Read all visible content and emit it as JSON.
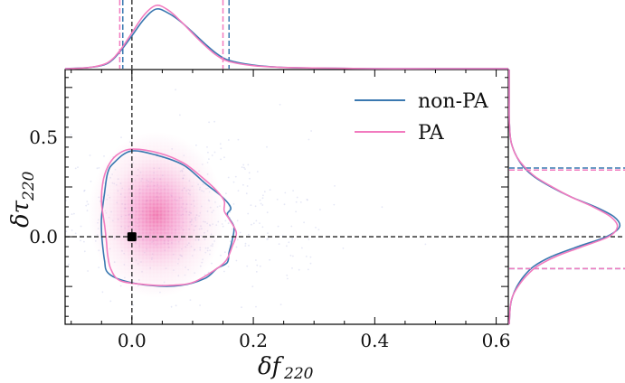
{
  "chart_data": {
    "type": "scatter",
    "subtype": "corner-plot-2d-density-with-marginals",
    "xlabel": {
      "main": "δf",
      "sub": "220"
    },
    "ylabel": {
      "main": "δτ",
      "sub": "220"
    },
    "xlim": [
      -0.11,
      0.62
    ],
    "ylim": [
      -0.44,
      0.84
    ],
    "xticks": [
      0.0,
      0.2,
      0.4,
      0.6
    ],
    "xtick_labels": [
      "0.0",
      "0.2",
      "0.4",
      "0.6"
    ],
    "yticks": [
      -0.25,
      0.0,
      0.25,
      0.5,
      0.75
    ],
    "ytick_labels": [
      "",
      "0.0",
      "",
      "0.5",
      ""
    ],
    "legend": {
      "placement": "top-right",
      "entries": [
        "non-PA",
        "PA"
      ]
    },
    "colors": {
      "non-PA": "#3a78b0",
      "PA": "#f27bbf",
      "reference": "#222222"
    },
    "reference_point": {
      "x": 0.0,
      "y": 0.0
    },
    "density_peak": {
      "x": 0.04,
      "y": 0.11
    },
    "series": [
      {
        "name": "non-PA",
        "contour_90": [
          [
            -0.002,
            0.43
          ],
          [
            0.04,
            0.41
          ],
          [
            0.085,
            0.36
          ],
          [
            0.12,
            0.27
          ],
          [
            0.145,
            0.21
          ],
          [
            0.158,
            0.17
          ],
          [
            0.163,
            0.14
          ],
          [
            0.157,
            0.11
          ],
          [
            0.168,
            0.05
          ],
          [
            0.165,
            -0.02
          ],
          [
            0.16,
            -0.08
          ],
          [
            0.157,
            -0.13
          ],
          [
            0.14,
            -0.16
          ],
          [
            0.12,
            -0.21
          ],
          [
            0.08,
            -0.245
          ],
          [
            0.03,
            -0.245
          ],
          [
            -0.015,
            -0.22
          ],
          [
            -0.04,
            -0.18
          ],
          [
            -0.045,
            -0.12
          ],
          [
            -0.048,
            -0.05
          ],
          [
            -0.05,
            0.02
          ],
          [
            -0.05,
            0.1
          ],
          [
            -0.045,
            0.22
          ],
          [
            -0.04,
            0.32
          ],
          [
            -0.03,
            0.37
          ]
        ],
        "x_marginal": {
          "x": [
            -0.11,
            -0.07,
            -0.04,
            -0.02,
            0.0,
            0.02,
            0.04,
            0.06,
            0.08,
            0.1,
            0.12,
            0.14,
            0.16,
            0.2,
            0.25,
            0.3,
            0.4,
            0.5,
            0.62
          ],
          "density": [
            0.0,
            0.02,
            0.09,
            0.28,
            0.55,
            0.83,
            1.0,
            0.93,
            0.79,
            0.61,
            0.42,
            0.25,
            0.14,
            0.06,
            0.02,
            0.01,
            0.0,
            0.0,
            0.0
          ]
        },
        "x_interval": [
          -0.015,
          0.16
        ],
        "y_marginal": {
          "y": [
            -0.44,
            -0.35,
            -0.3,
            -0.25,
            -0.2,
            -0.15,
            -0.1,
            -0.05,
            0.0,
            0.05,
            0.1,
            0.15,
            0.2,
            0.25,
            0.3,
            0.35,
            0.4,
            0.45,
            0.5,
            0.6,
            0.7,
            0.84
          ],
          "density": [
            0.0,
            0.01,
            0.03,
            0.07,
            0.13,
            0.22,
            0.38,
            0.62,
            0.88,
            1.0,
            0.95,
            0.78,
            0.56,
            0.38,
            0.23,
            0.13,
            0.07,
            0.03,
            0.01,
            0.0,
            0.0,
            0.0
          ]
        },
        "y_interval": [
          -0.16,
          0.345
        ]
      },
      {
        "name": "PA",
        "contour_90": [
          [
            0.0,
            0.44
          ],
          [
            0.045,
            0.42
          ],
          [
            0.085,
            0.37
          ],
          [
            0.115,
            0.3
          ],
          [
            0.14,
            0.23
          ],
          [
            0.152,
            0.18
          ],
          [
            0.152,
            0.13
          ],
          [
            0.16,
            0.09
          ],
          [
            0.172,
            0.02
          ],
          [
            0.165,
            -0.05
          ],
          [
            0.155,
            -0.12
          ],
          [
            0.135,
            -0.17
          ],
          [
            0.1,
            -0.23
          ],
          [
            0.06,
            -0.245
          ],
          [
            0.02,
            -0.24
          ],
          [
            -0.02,
            -0.22
          ],
          [
            -0.035,
            -0.16
          ],
          [
            -0.04,
            -0.09
          ],
          [
            -0.042,
            -0.02
          ],
          [
            -0.045,
            0.06
          ],
          [
            -0.05,
            0.17
          ],
          [
            -0.048,
            0.27
          ],
          [
            -0.04,
            0.35
          ],
          [
            -0.025,
            0.41
          ]
        ],
        "x_marginal": {
          "x": [
            -0.11,
            -0.07,
            -0.04,
            -0.02,
            0.0,
            0.02,
            0.04,
            0.06,
            0.08,
            0.1,
            0.12,
            0.14,
            0.16,
            0.2,
            0.25,
            0.3,
            0.4,
            0.5,
            0.62
          ],
          "density": [
            0.0,
            0.02,
            0.1,
            0.3,
            0.6,
            0.9,
            1.06,
            0.98,
            0.8,
            0.59,
            0.39,
            0.22,
            0.12,
            0.05,
            0.02,
            0.01,
            0.0,
            0.0,
            0.0
          ]
        },
        "x_interval": [
          -0.02,
          0.15
        ],
        "y_marginal": {
          "y": [
            -0.44,
            -0.35,
            -0.3,
            -0.25,
            -0.2,
            -0.15,
            -0.1,
            -0.05,
            0.0,
            0.05,
            0.1,
            0.15,
            0.2,
            0.25,
            0.3,
            0.35,
            0.4,
            0.45,
            0.5,
            0.6,
            0.7,
            0.84
          ],
          "density": [
            0.0,
            0.01,
            0.03,
            0.08,
            0.15,
            0.25,
            0.42,
            0.66,
            0.9,
            0.98,
            0.92,
            0.76,
            0.56,
            0.39,
            0.24,
            0.14,
            0.07,
            0.03,
            0.01,
            0.0,
            0.0,
            0.0
          ]
        },
        "y_interval": [
          -0.16,
          0.335
        ]
      }
    ]
  }
}
